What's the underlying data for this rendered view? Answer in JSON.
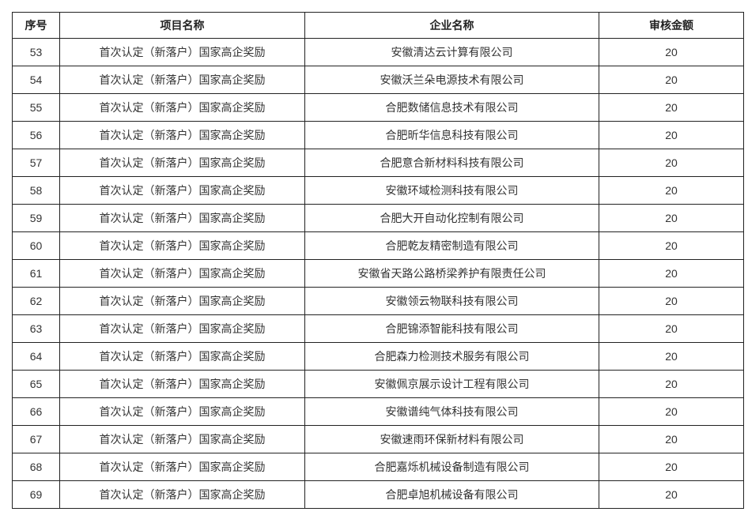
{
  "headers": [
    "序号",
    "项目名称",
    "企业名称",
    "审核金额"
  ],
  "rows": [
    {
      "no": "53",
      "project": "首次认定（新落户）国家高企奖励",
      "company": "安徽清达云计算有限公司",
      "amount": "20"
    },
    {
      "no": "54",
      "project": "首次认定（新落户）国家高企奖励",
      "company": "安徽沃兰朵电源技术有限公司",
      "amount": "20"
    },
    {
      "no": "55",
      "project": "首次认定（新落户）国家高企奖励",
      "company": "合肥数储信息技术有限公司",
      "amount": "20"
    },
    {
      "no": "56",
      "project": "首次认定（新落户）国家高企奖励",
      "company": "合肥昕华信息科技有限公司",
      "amount": "20"
    },
    {
      "no": "57",
      "project": "首次认定（新落户）国家高企奖励",
      "company": "合肥意合新材料科技有限公司",
      "amount": "20"
    },
    {
      "no": "58",
      "project": "首次认定（新落户）国家高企奖励",
      "company": "安徽环域检测科技有限公司",
      "amount": "20"
    },
    {
      "no": "59",
      "project": "首次认定（新落户）国家高企奖励",
      "company": "合肥大开自动化控制有限公司",
      "amount": "20"
    },
    {
      "no": "60",
      "project": "首次认定（新落户）国家高企奖励",
      "company": "合肥乾友精密制造有限公司",
      "amount": "20"
    },
    {
      "no": "61",
      "project": "首次认定（新落户）国家高企奖励",
      "company": "安徽省天路公路桥梁养护有限责任公司",
      "amount": "20"
    },
    {
      "no": "62",
      "project": "首次认定（新落户）国家高企奖励",
      "company": "安徽领云物联科技有限公司",
      "amount": "20"
    },
    {
      "no": "63",
      "project": "首次认定（新落户）国家高企奖励",
      "company": "合肥锦添智能科技有限公司",
      "amount": "20"
    },
    {
      "no": "64",
      "project": "首次认定（新落户）国家高企奖励",
      "company": "合肥森力检测技术服务有限公司",
      "amount": "20"
    },
    {
      "no": "65",
      "project": "首次认定（新落户）国家高企奖励",
      "company": "安徽佩京展示设计工程有限公司",
      "amount": "20"
    },
    {
      "no": "66",
      "project": "首次认定（新落户）国家高企奖励",
      "company": "安徽谱纯气体科技有限公司",
      "amount": "20"
    },
    {
      "no": "67",
      "project": "首次认定（新落户）国家高企奖励",
      "company": "安徽速雨环保新材料有限公司",
      "amount": "20"
    },
    {
      "no": "68",
      "project": "首次认定（新落户）国家高企奖励",
      "company": "合肥嘉烁机械设备制造有限公司",
      "amount": "20"
    },
    {
      "no": "69",
      "project": "首次认定（新落户）国家高企奖励",
      "company": "合肥卓旭机械设备有限公司",
      "amount": "20"
    }
  ]
}
